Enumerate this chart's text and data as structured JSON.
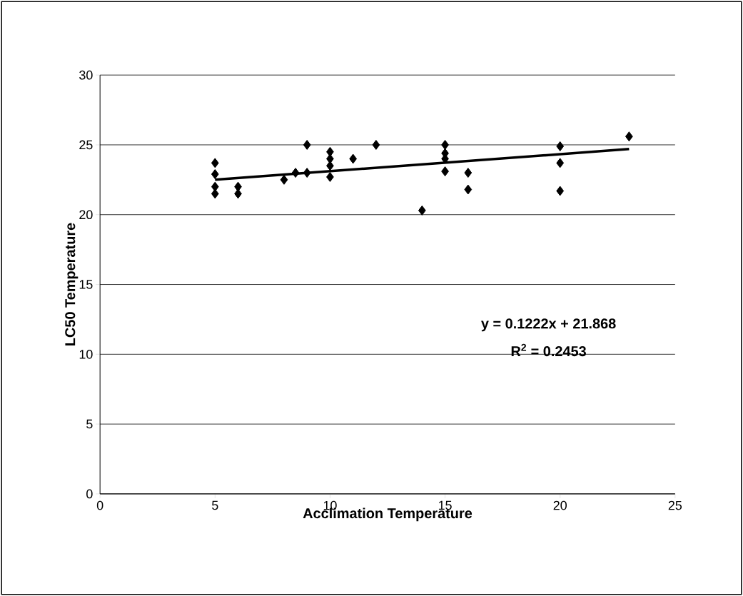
{
  "chart_data": {
    "type": "scatter",
    "xlabel": "Acclimation Temperature",
    "ylabel": "LC50 Temperature",
    "xlim": [
      0,
      25
    ],
    "xticks": [
      0,
      5,
      10,
      15,
      20,
      25
    ],
    "ylim": [
      0,
      30
    ],
    "yticks": [
      0,
      5,
      10,
      15,
      20,
      25,
      30
    ],
    "grid": "y",
    "marker": "diamond",
    "series": [
      {
        "color": "#000000",
        "x": [
          5,
          5,
          5,
          5,
          6,
          6,
          8,
          8.5,
          9,
          9,
          10,
          10,
          10,
          10,
          11,
          12,
          14,
          15,
          15,
          15,
          15,
          16,
          16,
          20,
          20,
          20,
          23
        ],
        "values": [
          23.7,
          22.9,
          22.0,
          21.5,
          22.0,
          21.5,
          22.5,
          23.0,
          23.0,
          25.0,
          24.5,
          24.0,
          23.5,
          22.7,
          24.0,
          25.0,
          20.3,
          25.0,
          24.4,
          24.0,
          23.1,
          23.0,
          21.8,
          24.9,
          23.7,
          21.7,
          25.6
        ]
      },
      {
        "type": "line",
        "marker": "none",
        "color": "#000000",
        "x": [
          5,
          23
        ],
        "values": [
          22.5,
          24.7
        ]
      }
    ],
    "annotations": [
      "y = 0.1222x + 21.868",
      "R$^{2}$ = 0.2453"
    ]
  }
}
